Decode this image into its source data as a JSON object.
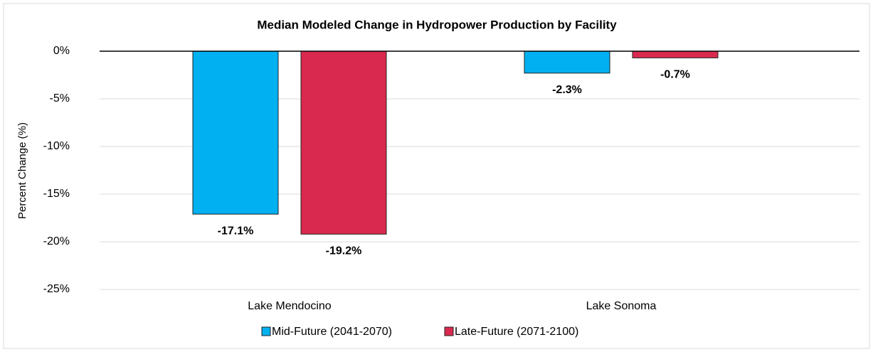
{
  "chart_data": {
    "type": "bar",
    "title": "Median Modeled Change in Hydropower Production by Facility",
    "y_label": "Percent Change (%)",
    "categories": [
      "Lake Mendocino",
      "Lake Sonoma"
    ],
    "series": [
      {
        "name": "Mid-Future (2041-2070)",
        "color": "#00b0f0",
        "values": [
          -17.1,
          -2.3
        ],
        "value_labels": [
          "-17.1%",
          "-2.3%"
        ]
      },
      {
        "name": "Late-Future (2071-2100)",
        "color": "#d9294f",
        "values": [
          -19.2,
          -0.7
        ],
        "value_labels": [
          "-19.2%",
          "-0.7%"
        ]
      }
    ],
    "ylim": [
      -25,
      0
    ],
    "yticks": [
      {
        "value": 0,
        "label": "0%"
      },
      {
        "value": -5,
        "label": "-5%"
      },
      {
        "value": -10,
        "label": "-10%"
      },
      {
        "value": -15,
        "label": "-15%"
      },
      {
        "value": -20,
        "label": "-20%"
      },
      {
        "value": -25,
        "label": "-25%"
      }
    ],
    "grid": true,
    "legend": "bottom"
  }
}
